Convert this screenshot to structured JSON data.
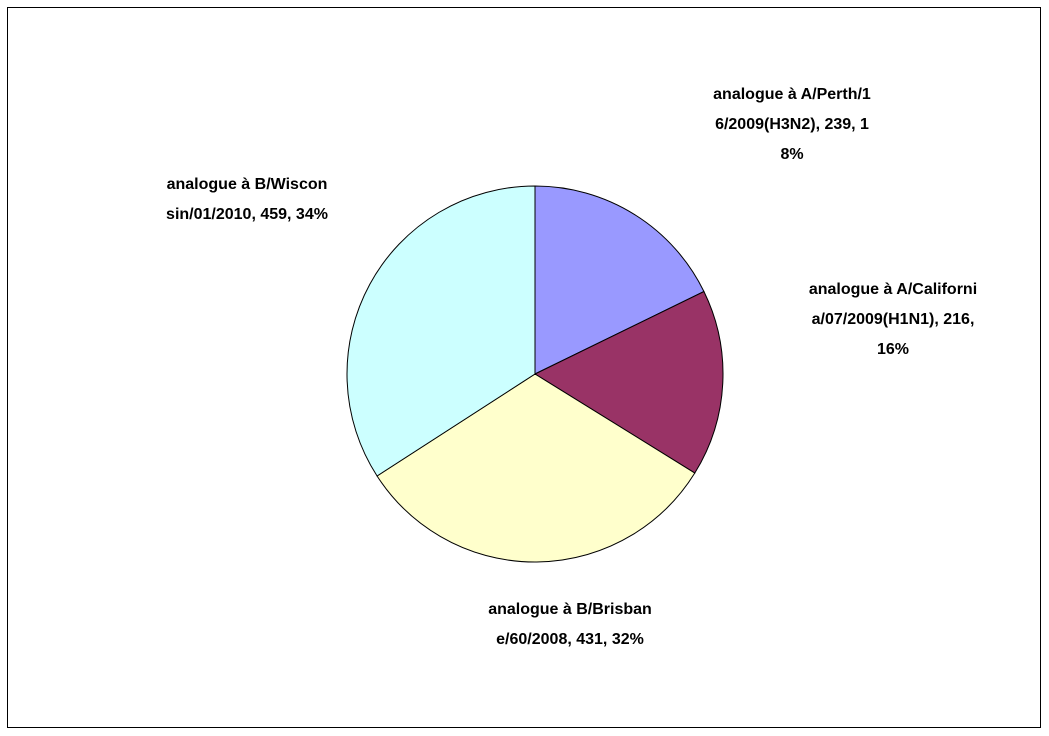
{
  "chart_data": {
    "type": "pie",
    "values": [
      239,
      216,
      431,
      459
    ],
    "value_labels": [
      "analogue à A/Perth/16/2009(H3N2), 239, 18%",
      "analogue à A/California/07/2009(H1N1), 216, 16%",
      "analogue à B/Brisbane/60/2008, 431, 32%",
      "analogue à B/Wisconsin/01/2010, 459, 34%"
    ],
    "colors": [
      "#9999ff",
      "#993366",
      "#ffffcc",
      "#ccffff"
    ]
  }
}
